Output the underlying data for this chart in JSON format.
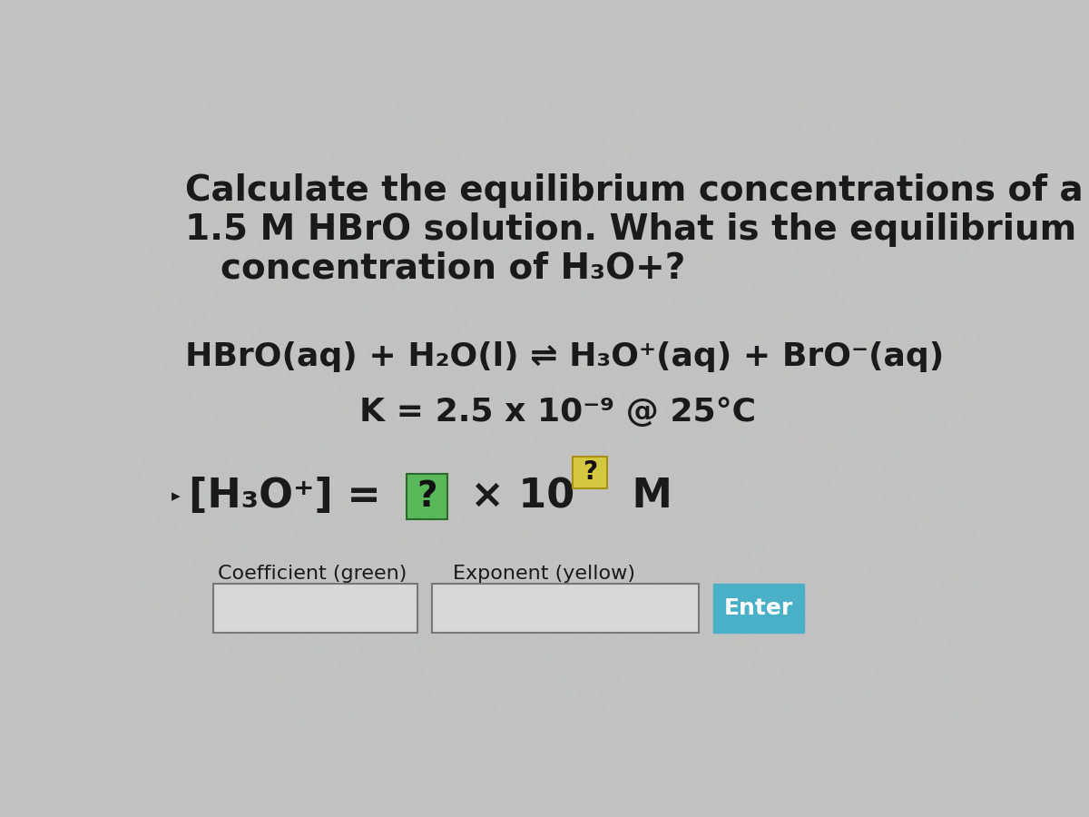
{
  "background_color": "#c2c2c2",
  "title_line1": "Calculate the equilibrium concentrations of a",
  "title_line2": "1.5 M HBrO solution. What is the equilibrium",
  "title_line3": "concentration of H₃O+?",
  "equation": "HBrO(aq) + H₂O(l) ⇌ H₃O⁺(aq) + BrO⁻(aq)",
  "k_line": "K = 2.5 x 10⁻⁹ @ 25°C",
  "label_coeff": "Coefficient (green)",
  "label_exp": "Exponent (yellow)",
  "btn_text": "Enter",
  "btn_color": "#4ab0c8",
  "btn_text_color": "#ffffff",
  "green_box_color": "#5ab85a",
  "yellow_box_color": "#d4c840",
  "text_color": "#1a1a1a",
  "input_box_color": "#d8d8d8",
  "input_box_border": "#888888",
  "title_fontsize": 28,
  "eq_fontsize": 26,
  "k_fontsize": 26,
  "ans_fontsize": 32
}
